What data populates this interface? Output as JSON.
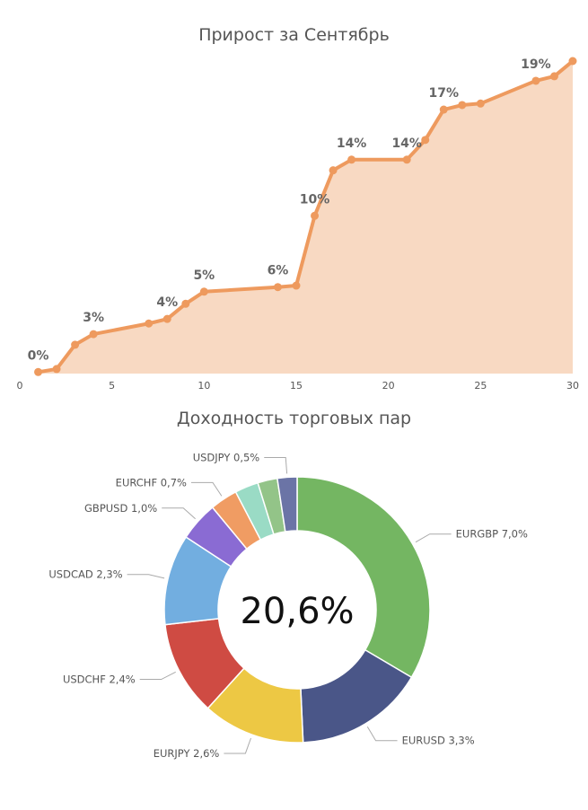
{
  "chart_data": [
    {
      "type": "area",
      "title": "Прирост за Сентябрь",
      "xlim": [
        0,
        30
      ],
      "ylim": [
        0,
        20.6
      ],
      "xticks": [
        "0",
        "5",
        "10",
        "15",
        "20",
        "25",
        "30"
      ],
      "xtick_values": [
        0,
        5,
        10,
        15,
        20,
        25,
        30
      ],
      "x": [
        1,
        2,
        3,
        4,
        7,
        8,
        9,
        10,
        14,
        15,
        16,
        17,
        18,
        21,
        22,
        23,
        24,
        25,
        28,
        29,
        30
      ],
      "y": [
        0.1,
        0.3,
        1.9,
        2.6,
        3.3,
        3.6,
        4.6,
        5.4,
        5.7,
        5.8,
        10.4,
        13.4,
        14.1,
        14.1,
        15.4,
        17.4,
        17.7,
        17.8,
        19.3,
        19.6,
        20.6
      ],
      "data_labels": [
        {
          "x": 1,
          "text": "0%"
        },
        {
          "x": 4,
          "text": "3%"
        },
        {
          "x": 8,
          "text": "4%"
        },
        {
          "x": 10,
          "text": "5%"
        },
        {
          "x": 14,
          "text": "6%"
        },
        {
          "x": 16,
          "text": "10%"
        },
        {
          "x": 18,
          "text": "14%"
        },
        {
          "x": 21,
          "text": "14%"
        },
        {
          "x": 23,
          "text": "17%"
        },
        {
          "x": 28,
          "text": "19%"
        }
      ],
      "line_color": "#EE9A5E",
      "fill_color": "#F8D9C2",
      "grid": false
    },
    {
      "type": "pie",
      "title": "Доходность торговых пар",
      "center_label": "20,6%",
      "slices": [
        {
          "name": "EURGBP",
          "value": 7.0,
          "label": "EURGBP 7,0%",
          "color": "#74B662"
        },
        {
          "name": "EURUSD",
          "value": 3.3,
          "label": "EURUSD 3,3%",
          "color": "#4A5688"
        },
        {
          "name": "EURJPY",
          "value": 2.6,
          "label": "EURJPY 2,6%",
          "color": "#EDC844"
        },
        {
          "name": "USDCHF",
          "value": 2.4,
          "label": "USDCHF 2,4%",
          "color": "#CF4B43"
        },
        {
          "name": "USDCAD",
          "value": 2.3,
          "label": "USDCAD 2,3%",
          "color": "#72AEE0"
        },
        {
          "name": "GBPUSD",
          "value": 1.0,
          "label": "GBPUSD 1,0%",
          "color": "#8A6BD3"
        },
        {
          "name": "EURCHF",
          "value": 0.7,
          "label": "EURCHF 0,7%",
          "color": "#F09C63"
        },
        {
          "name": "",
          "value": 0.6,
          "label": "",
          "color": "#9ADBC5"
        },
        {
          "name": "",
          "value": 0.5,
          "label": "",
          "color": "#93C488"
        },
        {
          "name": "USDJPY",
          "value": 0.5,
          "label": "USDJPY 0,5%",
          "color": "#6B74A6"
        }
      ],
      "legend": "none"
    }
  ]
}
